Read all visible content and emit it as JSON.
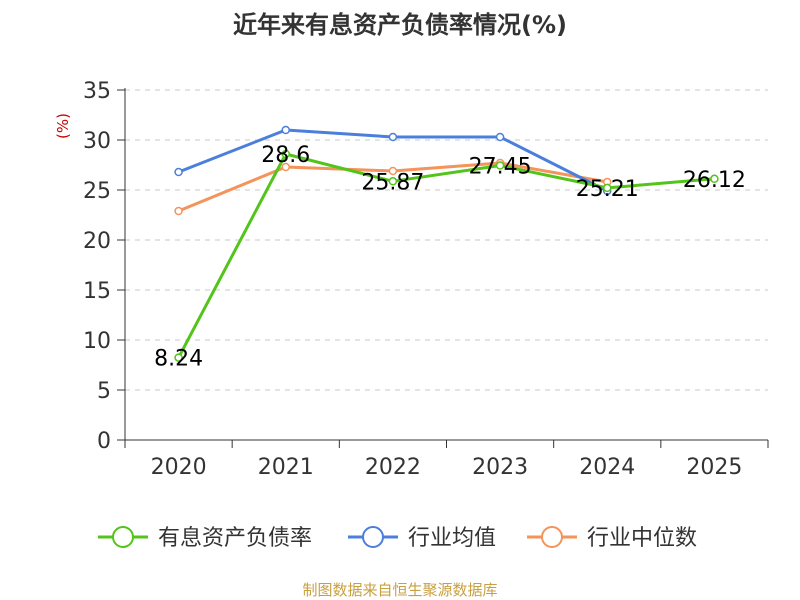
{
  "chart_data": {
    "type": "line",
    "title": "近年来有息资产负债率情况(%)",
    "ylabel": "(%)",
    "categories": [
      "2020",
      "2021",
      "2022",
      "2023",
      "2024",
      "2025"
    ],
    "ylim": [
      0,
      35
    ],
    "yticks": [
      "0",
      "5",
      "10",
      "15",
      "20",
      "25",
      "30",
      "35"
    ],
    "grid": true,
    "legend_position": "bottom",
    "series": [
      {
        "name": "有息资产负债率",
        "color": "#52c41a",
        "values": [
          8.24,
          28.6,
          25.87,
          27.45,
          25.21,
          26.12
        ],
        "labels": [
          "8.24",
          "28.6",
          "25.87",
          "27.45",
          "25.21",
          "26.12"
        ]
      },
      {
        "name": "行业均值",
        "color": "#4a7fdc",
        "values": [
          26.8,
          31.0,
          30.3,
          30.3,
          24.9,
          null
        ]
      },
      {
        "name": "行业中位数",
        "color": "#f4935a",
        "values": [
          22.9,
          27.3,
          26.9,
          27.7,
          25.8,
          null
        ]
      }
    ],
    "source": "制图数据来自恒生聚源数据库"
  }
}
